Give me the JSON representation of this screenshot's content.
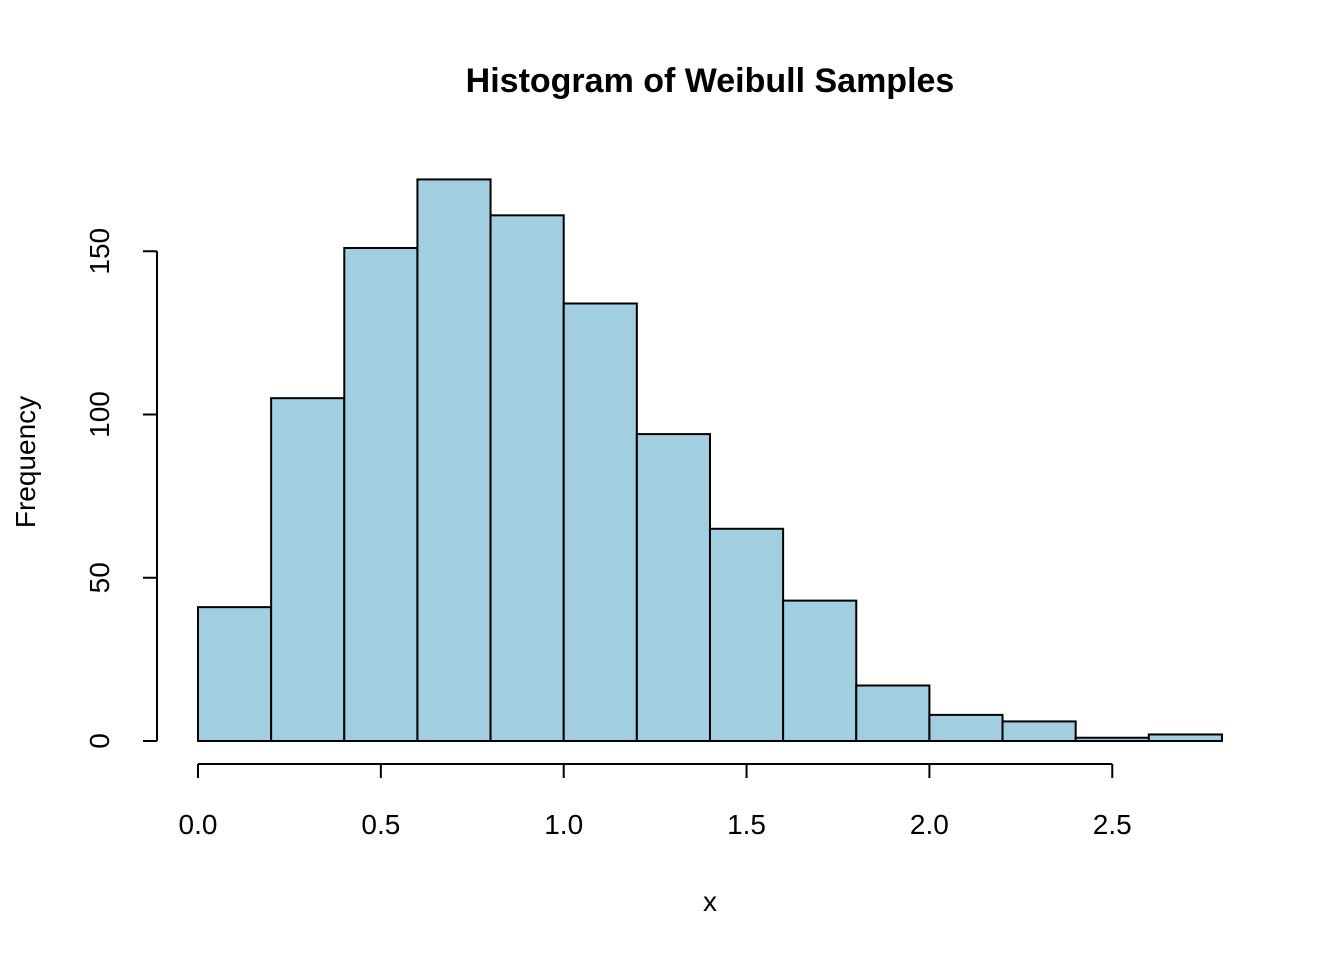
{
  "chart_data": {
    "type": "bar",
    "title": "Histogram of Weibull Samples",
    "xlabel": "x",
    "ylabel": "Frequency",
    "bin_edges": [
      0.0,
      0.2,
      0.4,
      0.6,
      0.8,
      1.0,
      1.2,
      1.4,
      1.6,
      1.8,
      2.0,
      2.2,
      2.4,
      2.6,
      2.8
    ],
    "values": [
      41,
      105,
      151,
      172,
      161,
      134,
      94,
      65,
      43,
      17,
      8,
      6,
      1,
      2
    ],
    "x_ticks": [
      0.0,
      0.5,
      1.0,
      1.5,
      2.0,
      2.5
    ],
    "x_tick_labels": [
      "0.0",
      "0.5",
      "1.0",
      "1.5",
      "2.0",
      "2.5"
    ],
    "y_ticks": [
      0,
      50,
      100,
      150
    ],
    "y_tick_labels": [
      "0",
      "50",
      "100",
      "150"
    ],
    "xlim": [
      0.0,
      2.8
    ],
    "ylim": [
      0,
      172
    ],
    "bar_color": "#a1cfe0",
    "grid": false
  }
}
